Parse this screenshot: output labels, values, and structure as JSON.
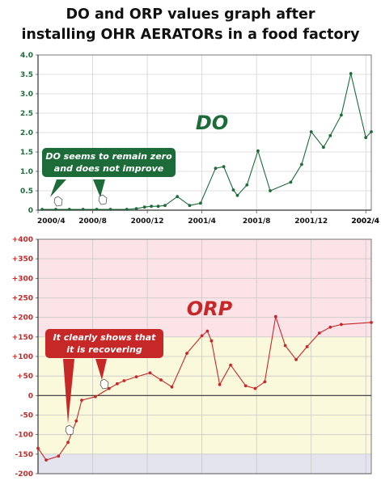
{
  "title": {
    "line1": "DO and ORP values graph after",
    "line2": "installing OHR AERATORs in a food factory"
  },
  "colors": {
    "do_line": "#1e6b3a",
    "orp_line": "#c62828",
    "do_axis_text": "#1e6b3a",
    "orp_axis_text": "#c62828",
    "band_pink": "#fbe3e8",
    "band_yellow": "#fbf9dc",
    "band_lavender": "#e4e4ef",
    "callout_green": "#1e6b3a",
    "callout_red": "#c62828"
  },
  "do_panel": {
    "series_label": "DO",
    "callout_line1": "DO seems to remain zero",
    "callout_line2": "and does not improve"
  },
  "orp_panel": {
    "series_label": "ORP",
    "callout_line1": "It clearly shows that",
    "callout_line2": "it is recovering"
  },
  "chart_data": [
    {
      "type": "line",
      "series_name": "DO",
      "x_ticks": [
        "2000/4",
        "2000/8",
        "2000/12",
        "2001/4",
        "2001/8",
        "2001/12",
        "2002/4",
        "2002/4"
      ],
      "xlim": [
        0,
        24.4
      ],
      "ylim": [
        0,
        4.0
      ],
      "y_ticks": [
        "0",
        "0.5",
        "1.0",
        "1.5",
        "2.0",
        "2.5",
        "3.0",
        "3.5",
        "4.0"
      ],
      "grid": true,
      "points": [
        [
          0.3,
          0.02
        ],
        [
          1.3,
          0.02
        ],
        [
          2.3,
          0.02
        ],
        [
          3.3,
          0.02
        ],
        [
          4.3,
          0.02
        ],
        [
          5.3,
          0.02
        ],
        [
          6.5,
          0.02
        ],
        [
          7.2,
          0.04
        ],
        [
          7.8,
          0.08
        ],
        [
          8.3,
          0.1
        ],
        [
          8.8,
          0.1
        ],
        [
          9.3,
          0.12
        ],
        [
          10.2,
          0.35
        ],
        [
          11.1,
          0.12
        ],
        [
          11.9,
          0.18
        ],
        [
          13.0,
          1.08
        ],
        [
          13.6,
          1.12
        ],
        [
          14.3,
          0.52
        ],
        [
          14.6,
          0.38
        ],
        [
          15.3,
          0.65
        ],
        [
          16.1,
          1.53
        ],
        [
          17.0,
          0.5
        ],
        [
          18.5,
          0.72
        ],
        [
          19.3,
          1.18
        ],
        [
          20.0,
          2.02
        ],
        [
          20.9,
          1.62
        ],
        [
          21.4,
          1.92
        ],
        [
          22.2,
          2.45
        ],
        [
          22.9,
          3.52
        ],
        [
          24.0,
          1.87
        ],
        [
          24.4,
          2.02
        ]
      ]
    },
    {
      "type": "line",
      "series_name": "ORP",
      "x_ticks": [],
      "xlim": [
        0,
        24.4
      ],
      "ylim": [
        -200,
        400
      ],
      "y_ticks": [
        "-200",
        "-150",
        "-100",
        "-50",
        "0",
        "+50",
        "+100",
        "+150",
        "+200",
        "+250",
        "+300",
        "+350",
        "+400"
      ],
      "grid": true,
      "background_bands": [
        {
          "from": 150,
          "to": 400,
          "color": "pink"
        },
        {
          "from": -150,
          "to": 150,
          "color": "yellow"
        },
        {
          "from": -200,
          "to": -150,
          "color": "lavender"
        }
      ],
      "points": [
        [
          0.0,
          -135
        ],
        [
          0.6,
          -165
        ],
        [
          1.5,
          -155
        ],
        [
          2.2,
          -120
        ],
        [
          2.8,
          -65
        ],
        [
          3.2,
          -12
        ],
        [
          4.2,
          -3
        ],
        [
          5.2,
          18
        ],
        [
          5.8,
          30
        ],
        [
          6.3,
          38
        ],
        [
          7.2,
          48
        ],
        [
          8.2,
          58
        ],
        [
          9.0,
          40
        ],
        [
          9.8,
          22
        ],
        [
          10.9,
          108
        ],
        [
          12.0,
          153
        ],
        [
          12.4,
          165
        ],
        [
          12.7,
          140
        ],
        [
          13.3,
          28
        ],
        [
          14.1,
          78
        ],
        [
          15.2,
          25
        ],
        [
          15.9,
          18
        ],
        [
          16.6,
          35
        ],
        [
          17.4,
          202
        ],
        [
          18.1,
          128
        ],
        [
          18.9,
          92
        ],
        [
          19.7,
          125
        ],
        [
          20.6,
          160
        ],
        [
          21.4,
          175
        ],
        [
          22.2,
          182
        ],
        [
          24.4,
          187
        ]
      ]
    }
  ]
}
